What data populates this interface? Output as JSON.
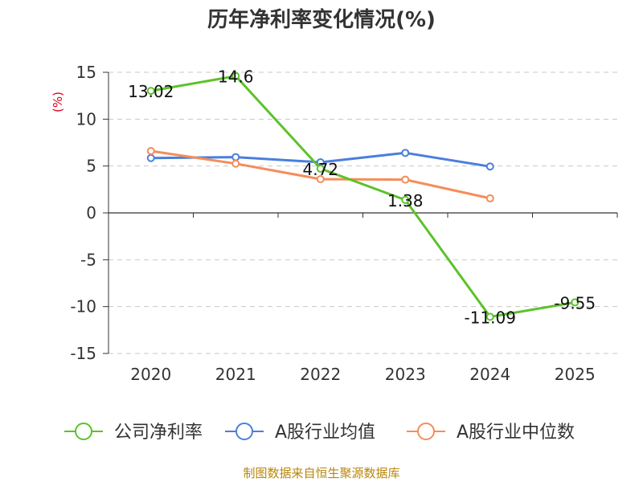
{
  "chart_data": {
    "type": "line",
    "title": "历年净利率变化情况(%)",
    "ylabel": "(%)",
    "xlabel": "",
    "categories": [
      "2020",
      "2021",
      "2022",
      "2023",
      "2024",
      "2025"
    ],
    "ylim": [
      -15,
      15
    ],
    "yticks": [
      15,
      10,
      5,
      0,
      -5,
      -10,
      -15
    ],
    "grid": true,
    "legend_position": "bottom",
    "series": [
      {
        "name": "公司净利率",
        "color": "#5cc22a",
        "values": [
          13.02,
          14.6,
          4.72,
          1.38,
          -11.09,
          -9.55
        ],
        "labels": [
          "13.02",
          "14.6",
          "4.72",
          "1.38",
          "-11.09",
          "-9.55"
        ]
      },
      {
        "name": "A股行业均值",
        "color": "#4a7fdc",
        "values": [
          5.85,
          5.95,
          5.4,
          6.4,
          4.95,
          null
        ]
      },
      {
        "name": "A股行业中位数",
        "color": "#f58d5a",
        "values": [
          6.6,
          5.25,
          3.6,
          3.55,
          1.55,
          null
        ]
      }
    ]
  },
  "source": "制图数据来自恒生聚源数据库"
}
